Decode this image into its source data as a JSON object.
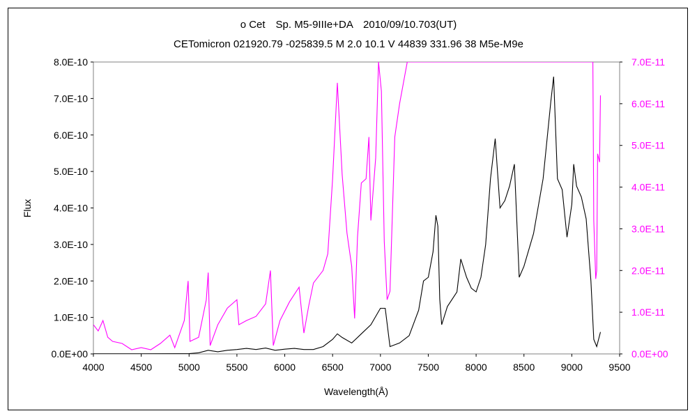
{
  "chart_data": {
    "type": "line",
    "title": "ο Cet　Sp. M5-9IIIe+DA　2010/09/10.703(UT)",
    "subtitle": "CETomicron 021920.79 -025839.5 M 2.0 10.1 V 44839 331.96 38 M5e-M9e",
    "xlabel": "Wavelength(Å)",
    "ylabel": "Flux",
    "xlim": [
      4000,
      9500
    ],
    "ylim": [
      0,
      8e-10
    ],
    "y2lim": [
      0,
      7e-11
    ],
    "grid": false,
    "x_ticks": [
      "4000",
      "4500",
      "5000",
      "5500",
      "6000",
      "6500",
      "7000",
      "7500",
      "8000",
      "8500",
      "9000",
      "9500"
    ],
    "y_ticks": [
      "0.0E+00",
      "1.0E-10",
      "2.0E-10",
      "3.0E-10",
      "4.0E-10",
      "5.0E-10",
      "6.0E-10",
      "7.0E-10",
      "8.0E-10"
    ],
    "y2_ticks": [
      "0.0E+00",
      "1.0E-11",
      "2.0E-11",
      "3.0E-11",
      "4.0E-11",
      "5.0E-11",
      "6.0E-11",
      "7.0E-11"
    ],
    "series": [
      {
        "axis": "left",
        "color": "#000000",
        "points": [
          [
            4000,
            4e-13
          ],
          [
            4500,
            4e-13
          ],
          [
            4900,
            6e-13
          ],
          [
            5000,
            1e-12
          ],
          [
            5100,
            3e-12
          ],
          [
            5200,
            1e-11
          ],
          [
            5300,
            6e-12
          ],
          [
            5400,
            1e-11
          ],
          [
            5500,
            1.2e-11
          ],
          [
            5600,
            1.5e-11
          ],
          [
            5700,
            1.2e-11
          ],
          [
            5800,
            1.6e-11
          ],
          [
            5900,
            1e-11
          ],
          [
            6000,
            1.3e-11
          ],
          [
            6100,
            1.5e-11
          ],
          [
            6200,
            1.2e-11
          ],
          [
            6300,
            1.2e-11
          ],
          [
            6400,
            2e-11
          ],
          [
            6500,
            4e-11
          ],
          [
            6550,
            5.5e-11
          ],
          [
            6600,
            4.5e-11
          ],
          [
            6700,
            3e-11
          ],
          [
            6800,
            5.5e-11
          ],
          [
            6900,
            8e-11
          ],
          [
            7000,
            1.25e-10
          ],
          [
            7050,
            1.25e-10
          ],
          [
            7100,
            2e-11
          ],
          [
            7200,
            3e-11
          ],
          [
            7300,
            5e-11
          ],
          [
            7400,
            1.2e-10
          ],
          [
            7450,
            2e-10
          ],
          [
            7500,
            2.1e-10
          ],
          [
            7550,
            2.8e-10
          ],
          [
            7580,
            3.8e-10
          ],
          [
            7600,
            3.5e-10
          ],
          [
            7620,
            1.5e-10
          ],
          [
            7640,
            8e-11
          ],
          [
            7700,
            1.3e-10
          ],
          [
            7800,
            1.7e-10
          ],
          [
            7840,
            2.6e-10
          ],
          [
            7900,
            2.1e-10
          ],
          [
            7950,
            1.8e-10
          ],
          [
            8000,
            1.7e-10
          ],
          [
            8050,
            2.1e-10
          ],
          [
            8100,
            3e-10
          ],
          [
            8150,
            4.8e-10
          ],
          [
            8200,
            5.9e-10
          ],
          [
            8250,
            4e-10
          ],
          [
            8300,
            4.2e-10
          ],
          [
            8350,
            4.6e-10
          ],
          [
            8400,
            5.2e-10
          ],
          [
            8450,
            2.1e-10
          ],
          [
            8500,
            2.4e-10
          ],
          [
            8600,
            3.3e-10
          ],
          [
            8700,
            4.8e-10
          ],
          [
            8780,
            6.9e-10
          ],
          [
            8810,
            7.6e-10
          ],
          [
            8850,
            4.8e-10
          ],
          [
            8900,
            4.5e-10
          ],
          [
            8950,
            3.2e-10
          ],
          [
            9000,
            4.1e-10
          ],
          [
            9020,
            5.2e-10
          ],
          [
            9050,
            4.6e-10
          ],
          [
            9100,
            4.3e-10
          ],
          [
            9150,
            3.7e-10
          ],
          [
            9200,
            2e-10
          ],
          [
            9230,
            4e-11
          ],
          [
            9260,
            2e-11
          ],
          [
            9300,
            6e-11
          ]
        ]
      },
      {
        "axis": "right",
        "color": "#ff00ff",
        "points": [
          [
            4000,
            7e-12
          ],
          [
            4050,
            5.5e-12
          ],
          [
            4100,
            8e-12
          ],
          [
            4150,
            4e-12
          ],
          [
            4200,
            3e-12
          ],
          [
            4300,
            2.5e-12
          ],
          [
            4400,
            1e-12
          ],
          [
            4500,
            1.5e-12
          ],
          [
            4600,
            1e-12
          ],
          [
            4700,
            2.5e-12
          ],
          [
            4800,
            4.5e-12
          ],
          [
            4850,
            1.5e-12
          ],
          [
            4950,
            8e-12
          ],
          [
            4990,
            1.75e-11
          ],
          [
            5010,
            3e-12
          ],
          [
            5100,
            4e-12
          ],
          [
            5180,
            1.3e-11
          ],
          [
            5200,
            1.95e-11
          ],
          [
            5220,
            2e-12
          ],
          [
            5300,
            7e-12
          ],
          [
            5400,
            1.1e-11
          ],
          [
            5500,
            1.3e-11
          ],
          [
            5520,
            7e-12
          ],
          [
            5600,
            8e-12
          ],
          [
            5700,
            9e-12
          ],
          [
            5800,
            1.2e-11
          ],
          [
            5850,
            2e-11
          ],
          [
            5880,
            2e-12
          ],
          [
            5950,
            8e-12
          ],
          [
            6050,
            1.25e-11
          ],
          [
            6150,
            1.6e-11
          ],
          [
            6200,
            5e-12
          ],
          [
            6250,
            1.15e-11
          ],
          [
            6300,
            1.7e-11
          ],
          [
            6400,
            2e-11
          ],
          [
            6450,
            2.4e-11
          ],
          [
            6500,
            4.2e-11
          ],
          [
            6550,
            6.5e-11
          ],
          [
            6600,
            4.3e-11
          ],
          [
            6650,
            2.9e-11
          ],
          [
            6700,
            2.1e-11
          ],
          [
            6730,
            8.5e-12
          ],
          [
            6760,
            2.8e-11
          ],
          [
            6800,
            4.1e-11
          ],
          [
            6850,
            4.2e-11
          ],
          [
            6880,
            5.2e-11
          ],
          [
            6900,
            3.2e-11
          ],
          [
            6950,
            4.7e-11
          ],
          [
            6980,
            7e-11
          ],
          [
            7010,
            6.3e-11
          ],
          [
            7040,
            2.7e-11
          ],
          [
            7070,
            1.3e-11
          ],
          [
            7100,
            1.5e-11
          ],
          [
            7150,
            5.2e-11
          ],
          [
            7200,
            6e-11
          ],
          [
            7280,
            7e-11
          ],
          [
            7300,
            7e-11
          ],
          [
            9220,
            7e-11
          ],
          [
            9230,
            3.2e-11
          ],
          [
            9250,
            1.8e-11
          ],
          [
            9260,
            2e-11
          ],
          [
            9270,
            4.8e-11
          ],
          [
            9290,
            4.6e-11
          ],
          [
            9300,
            6.2e-11
          ]
        ]
      }
    ]
  }
}
